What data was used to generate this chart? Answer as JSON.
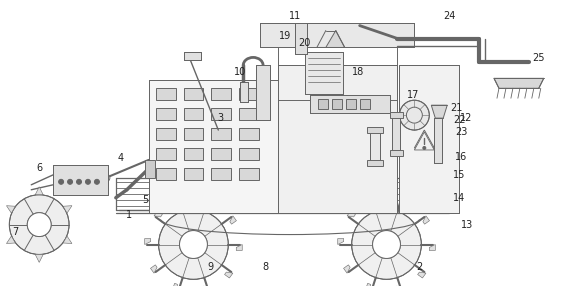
{
  "figure_size": [
    5.74,
    2.87
  ],
  "dpi": 100,
  "bg_color": "#ffffff",
  "line_color": "#666666",
  "line_width": 0.7,
  "label_fontsize": 7.0
}
